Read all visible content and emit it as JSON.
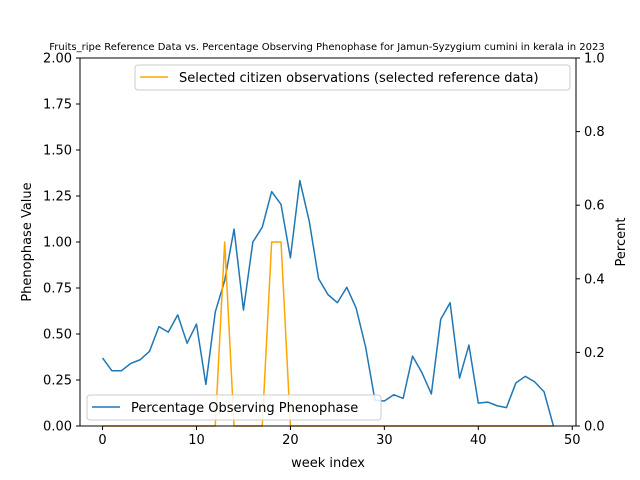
{
  "chart_data": {
    "type": "line",
    "title": "Fruits_ripe Reference Data vs. Percentage Observing Phenophase for Jamun-Syzygium cumini in kerala in 2023",
    "xlabel": "week index",
    "ylabel_left": "Phenophase Value",
    "ylabel_right": "Percent",
    "xlim": [
      -2.4,
      50.4
    ],
    "ylim_left": [
      0,
      2.0
    ],
    "ylim_right": [
      0,
      1.0
    ],
    "xticks": [
      0,
      10,
      20,
      30,
      40,
      50
    ],
    "yticks_left": [
      0.0,
      0.25,
      0.5,
      0.75,
      1.0,
      1.25,
      1.5,
      1.75,
      2.0
    ],
    "yticks_right": [
      0.0,
      0.2,
      0.4,
      0.6,
      0.8,
      1.0
    ],
    "grid": false,
    "series": [
      {
        "name": "Selected citizen observations (selected reference data)",
        "axis": "left",
        "color": "#ffa500",
        "x": [
          0,
          1,
          2,
          3,
          4,
          5,
          6,
          7,
          8,
          9,
          10,
          11,
          12,
          13,
          14,
          15,
          16,
          17,
          18,
          19,
          20,
          21,
          22,
          23,
          24,
          25,
          26,
          27,
          28,
          29,
          30,
          31,
          32,
          33,
          34,
          35,
          36,
          37,
          38,
          39,
          40,
          41,
          42,
          43,
          44,
          45,
          46,
          47,
          48
        ],
        "values": [
          0,
          0,
          0,
          0,
          0,
          0,
          0,
          0,
          0,
          0,
          0,
          0,
          0,
          1,
          0,
          0,
          0,
          0,
          1,
          1,
          0,
          0,
          0,
          0,
          0,
          0,
          0,
          0,
          0,
          0,
          0,
          0,
          0,
          0,
          0,
          0,
          0,
          0,
          0,
          0,
          0,
          0,
          0,
          0,
          0,
          0,
          0,
          0,
          0
        ]
      },
      {
        "name": "Percentage Observing Phenophase",
        "axis": "right",
        "color": "#1f77b4",
        "x": [
          0,
          1,
          2,
          3,
          4,
          5,
          6,
          7,
          8,
          9,
          10,
          11,
          12,
          13,
          14,
          15,
          16,
          17,
          18,
          19,
          20,
          21,
          22,
          23,
          24,
          25,
          26,
          27,
          28,
          29,
          30,
          31,
          32,
          33,
          34,
          35,
          36,
          37,
          38,
          39,
          40,
          41,
          42,
          43,
          44,
          45,
          46,
          47,
          48
        ],
        "values": [
          0.185,
          0.15,
          0.15,
          0.17,
          0.18,
          0.203,
          0.27,
          0.255,
          0.302,
          0.225,
          0.277,
          0.113,
          0.31,
          0.395,
          0.535,
          0.315,
          0.5,
          0.54,
          0.637,
          0.602,
          0.457,
          0.667,
          0.557,
          0.4,
          0.357,
          0.335,
          0.377,
          0.32,
          0.215,
          0.07,
          0.068,
          0.085,
          0.075,
          0.19,
          0.145,
          0.087,
          0.29,
          0.335,
          0.13,
          0.22,
          0.062,
          0.065,
          0.055,
          0.05,
          0.117,
          0.135,
          0.12,
          0.093,
          0.0
        ]
      }
    ],
    "legends": [
      {
        "placement": "upper-right",
        "entries": [
          "Selected citizen observations (selected reference data)"
        ]
      },
      {
        "placement": "lower-left",
        "entries": [
          "Percentage Observing Phenophase"
        ]
      }
    ]
  }
}
